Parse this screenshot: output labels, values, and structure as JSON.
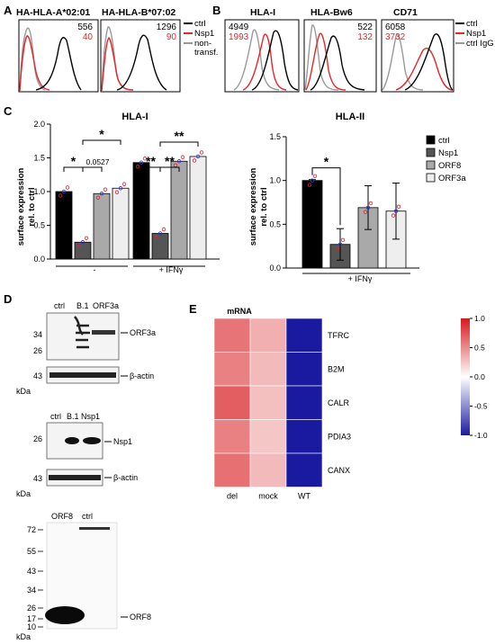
{
  "panels": {
    "A": "A",
    "B": "B",
    "C": "C",
    "D": "D",
    "E": "E"
  },
  "colors": {
    "ctrl": "#000000",
    "nsp1": "#e8252a",
    "gray": "#999999",
    "orf8": "#a9a9a9",
    "orf3a": "#eeeeee",
    "nsp1bar": "#555555",
    "heat_wt": "#1a1aa0"
  },
  "panelA": {
    "plots": [
      {
        "title": "HA-HLA-A*02:01",
        "mfi_ctrl": "556",
        "mfi_nsp1": "40"
      },
      {
        "title": "HA-HLA-B*07:02",
        "mfi_ctrl": "1296",
        "mfi_nsp1": "90"
      }
    ],
    "legend": [
      "ctrl",
      "Nsp1",
      "non-",
      "transf."
    ]
  },
  "panelB": {
    "plots": [
      {
        "title": "HLA-I",
        "mfi_ctrl": "4949",
        "mfi_nsp1": "1993"
      },
      {
        "title": "HLA-Bw6",
        "mfi_ctrl": "522",
        "mfi_nsp1": "132"
      },
      {
        "title": "CD71",
        "mfi_ctrl": "6058",
        "mfi_nsp1": "3732"
      }
    ],
    "legend": [
      "ctrl",
      "Nsp1",
      "ctrl IgG"
    ]
  },
  "chart_data": [
    {
      "type": "bar",
      "title": "HLA-I",
      "ylabel": "surface expression rel. to ctrl",
      "ylim": [
        0,
        2.0
      ],
      "yticks": [
        "0.0",
        "0.5",
        "1.0",
        "1.5",
        "2.0"
      ],
      "groups": [
        "-",
        "+ IFNγ"
      ],
      "categories": [
        "ctrl",
        "Nsp1",
        "ORF8",
        "ORF3a"
      ],
      "series": [
        {
          "values": [
            1.0,
            0.25,
            0.97,
            1.05
          ]
        },
        {
          "values": [
            1.43,
            0.38,
            1.45,
            1.52
          ]
        }
      ],
      "annotations": [
        "*",
        "*",
        "0.0527",
        "**",
        "**",
        "**"
      ]
    },
    {
      "type": "bar",
      "title": "HLA-II",
      "ylabel": "surface expression rel. to ctrl",
      "ylim": [
        0,
        1.5
      ],
      "yticks": [
        "0.0",
        "0.5",
        "1.0",
        "1.5"
      ],
      "groups": [
        "+ IFNγ"
      ],
      "categories": [
        "ctrl",
        "Nsp1",
        "ORF8",
        "ORF3a"
      ],
      "values": [
        1.0,
        0.27,
        0.69,
        0.65
      ],
      "errors": [
        0.01,
        0.18,
        0.25,
        0.32
      ],
      "annotations": [
        "*"
      ],
      "legend": [
        "ctrl",
        "Nsp1",
        "ORF8",
        "ORF3a"
      ],
      "legend_placement": "right"
    },
    {
      "type": "heatmap",
      "title": "mRNA",
      "columns": [
        "del",
        "mock",
        "WT"
      ],
      "rows": [
        "TFRC",
        "B2M",
        "CALR",
        "PDIA3",
        "CANX"
      ],
      "values": [
        [
          0.6,
          0.35,
          -1.0
        ],
        [
          0.55,
          0.3,
          -1.0
        ],
        [
          0.7,
          0.28,
          -1.0
        ],
        [
          0.55,
          0.25,
          -1.0
        ],
        [
          0.62,
          0.3,
          -1.0
        ]
      ],
      "colorbar_ticks": [
        "1.0",
        "0.5",
        "0.0",
        "-0.5",
        "-1.0"
      ],
      "range": [
        -1.0,
        1.0
      ]
    }
  ],
  "panelD": {
    "blot1": {
      "lanes": [
        "ctrl",
        "B.1",
        "ORF3a"
      ],
      "markers_top": [
        "34",
        "26"
      ],
      "markers_bottom": [
        "43"
      ],
      "band_labels": [
        "ORF3a",
        "β-actin"
      ],
      "unit": "kDa"
    },
    "blot2": {
      "lanes": [
        "ctrl",
        "B.1",
        "Nsp1"
      ],
      "markers_top": [
        "26"
      ],
      "markers_bottom": [
        "43"
      ],
      "band_labels": [
        "Nsp1",
        "β-actin"
      ],
      "unit": "kDa"
    },
    "blot3": {
      "lanes": [
        "ORF8",
        "ctrl"
      ],
      "markers": [
        "72",
        "55",
        "43",
        "34",
        "26",
        "17",
        "10"
      ],
      "band_label": "ORF8",
      "unit": "kDa"
    }
  }
}
